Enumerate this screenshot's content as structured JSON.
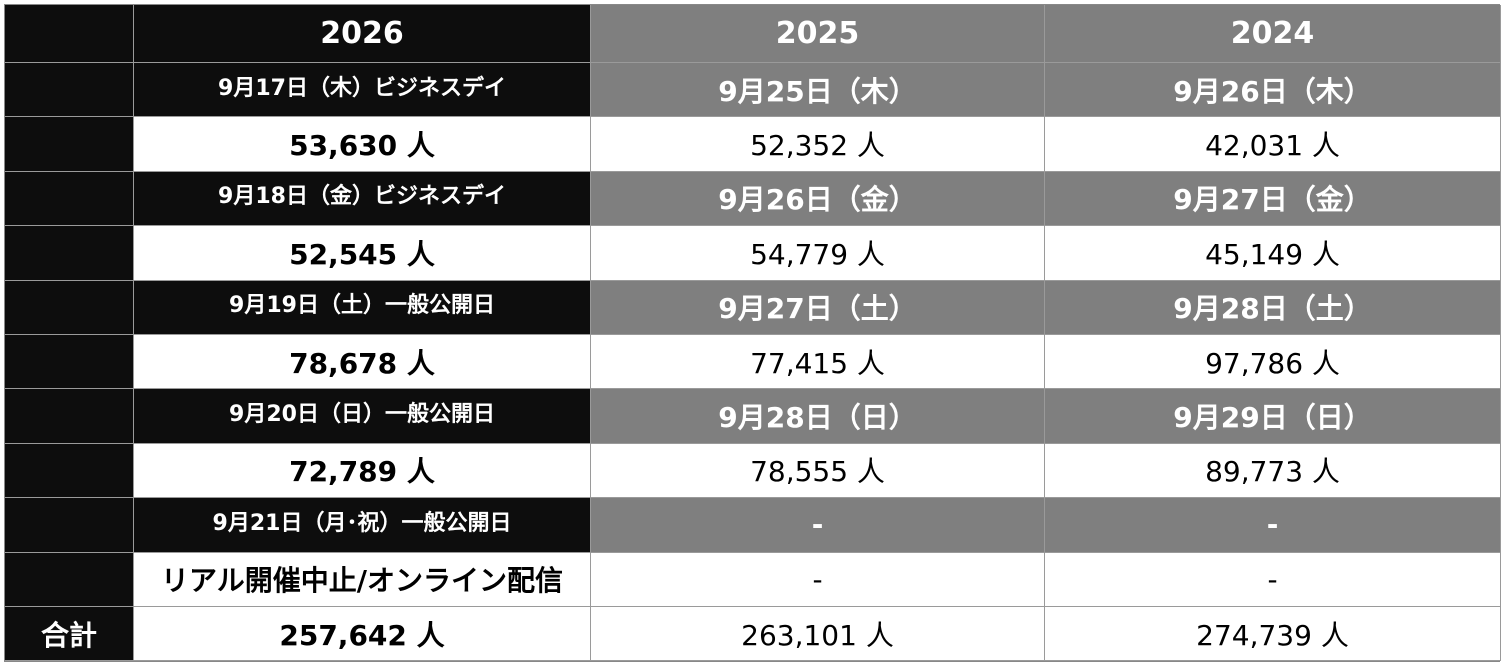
{
  "table": {
    "columns": [
      "2026",
      "2025",
      "2024"
    ],
    "rows": [
      [
        "9月17日（木）ビジネスデイ",
        "9月25日（木）",
        "9月26日（木）"
      ],
      [
        "53,630 人",
        "52,352 人",
        "42,031 人"
      ],
      [
        "9月18日（金）ビジネスデイ",
        "9月26日（金）",
        "9月27日（金）"
      ],
      [
        "52,545 人",
        "54,779 人",
        "45,149 人"
      ],
      [
        "9月19日（土）一般公開日",
        "9月27日（土）",
        "9月28日（土）"
      ],
      [
        "78,678 人",
        "77,415 人",
        "97,786 人"
      ],
      [
        "9月20日（日）一般公開日",
        "9月28日（日）",
        "9月29日（日）"
      ],
      [
        "72,789 人",
        "78,555 人",
        "89,773 人"
      ],
      [
        "9月21日（月･祝）一般公開日",
        "-",
        "-"
      ],
      [
        "リアル開催中止/オンライン配信",
        "-",
        "-"
      ]
    ],
    "total": {
      "label": "合計",
      "cells": [
        "257,642 人",
        "263,101 人",
        "274,739 人"
      ]
    }
  }
}
